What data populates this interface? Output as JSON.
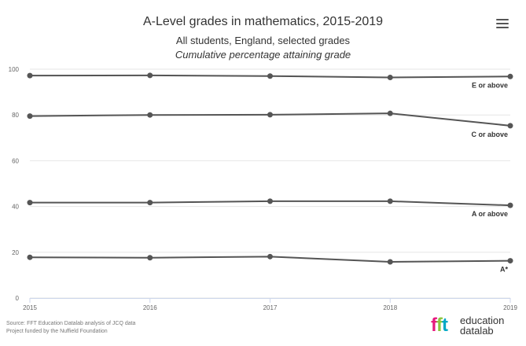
{
  "chart_data": {
    "type": "line",
    "title": "A-Level grades in mathematics, 2015-2019",
    "subtitle": "All students, England, selected grades",
    "subtitle2": "Cumulative percentage attaining grade",
    "x": [
      "2015",
      "2016",
      "2017",
      "2018",
      "2019"
    ],
    "ylim": [
      0,
      100
    ],
    "yticks": [
      "0",
      "20",
      "40",
      "60",
      "80",
      "100"
    ],
    "grid": true,
    "line_color": "#555555",
    "series": [
      {
        "name": "E or above",
        "values": [
          97.2,
          97.3,
          97.0,
          96.4,
          96.8
        ]
      },
      {
        "name": "C or above",
        "values": [
          79.5,
          80.0,
          80.1,
          80.7,
          75.3
        ]
      },
      {
        "name": "A or above",
        "values": [
          41.7,
          41.7,
          42.3,
          42.3,
          40.5
        ]
      },
      {
        "name": "A*",
        "values": [
          17.8,
          17.6,
          18.1,
          15.8,
          16.3
        ]
      }
    ]
  },
  "source": {
    "line1": "Source: FFT Education Datalab analysis of JCQ data",
    "line2": "Project funded by the Nuffield Foundation"
  },
  "logo": {
    "mark_f1": "f",
    "mark_f2": "f",
    "mark_t": "t",
    "word1": "education",
    "word2": "datalab"
  },
  "menu": {
    "icon": "hamburger-menu-icon"
  }
}
